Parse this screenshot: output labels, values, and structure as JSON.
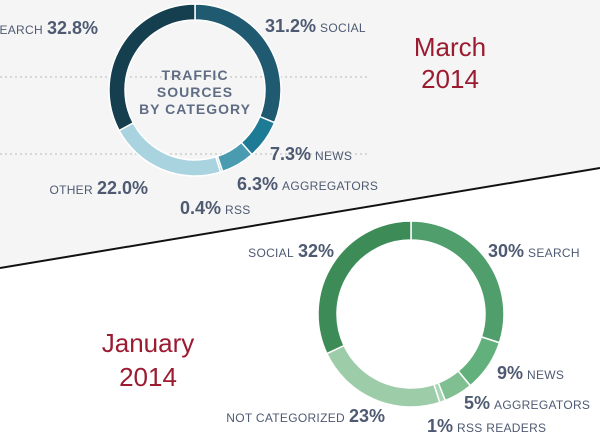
{
  "chart_data": [
    {
      "type": "donut",
      "title": "March 2014",
      "center_label": [
        "TRAFFIC",
        "SOURCES",
        "BY CATEGORY"
      ],
      "categories": [
        "SOCIAL",
        "NEWS",
        "AGGREGATORS",
        "RSS",
        "OTHER",
        "SEARCH"
      ],
      "values": [
        31.2,
        7.3,
        6.3,
        0.4,
        22.0,
        32.8
      ],
      "value_labels": [
        "31.2%",
        "7.3%",
        "6.3%",
        "0.4%",
        "22.0%",
        "32.8%"
      ],
      "colors": [
        "#1f5a70",
        "#1d7b96",
        "#4b9bb0",
        "#8fc4d3",
        "#a9d3df",
        "#153e4e"
      ]
    },
    {
      "type": "donut",
      "title": "January 2014",
      "categories": [
        "SEARCH",
        "NEWS",
        "AGGREGATORS",
        "RSS READERS",
        "NOT CATEGORIZED",
        "SOCIAL"
      ],
      "values": [
        30,
        9,
        5,
        1,
        23,
        32
      ],
      "value_labels": [
        "30%",
        "9%",
        "5%",
        "1%",
        "23%",
        "32%"
      ],
      "colors": [
        "#4f9e6b",
        "#62b07c",
        "#7fbf92",
        "#a9d6b4",
        "#9dcca9",
        "#3d8c57"
      ]
    }
  ]
}
